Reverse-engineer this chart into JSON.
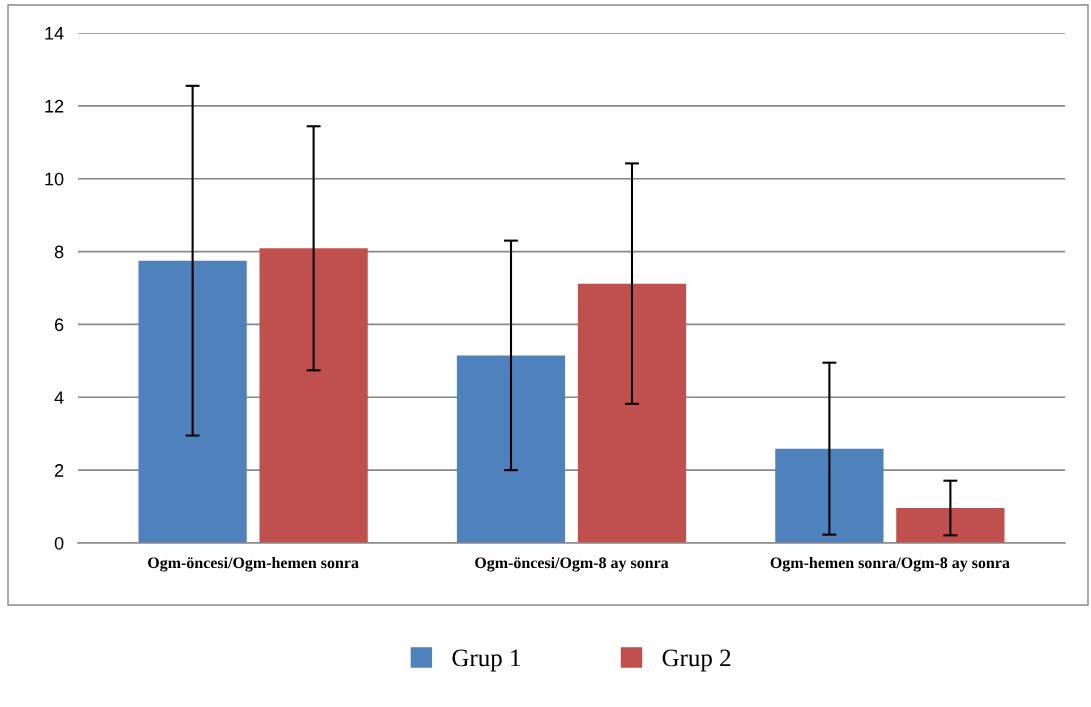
{
  "chart_data": {
    "type": "bar",
    "categories": [
      "Ogm-öncesi/Ogm-hemen sonra",
      "Ogm-öncesi/Ogm-8 ay sonra",
      "Ogm-hemen sonra/Ogm-8 ay sonra"
    ],
    "series": [
      {
        "name": "Grup 1",
        "color": "#4f81bd",
        "values": [
          7.75,
          5.15,
          2.59
        ],
        "errors": [
          4.8,
          3.15,
          2.36
        ]
      },
      {
        "name": "Grup 2",
        "color": "#c0504d",
        "values": [
          8.09,
          7.12,
          0.96
        ],
        "errors": [
          3.35,
          3.3,
          0.75
        ]
      }
    ],
    "ylim": [
      0,
      14
    ],
    "yticks": [
      0,
      2,
      4,
      6,
      8,
      10,
      12,
      14
    ],
    "grid": "y",
    "legend": "bottom"
  }
}
